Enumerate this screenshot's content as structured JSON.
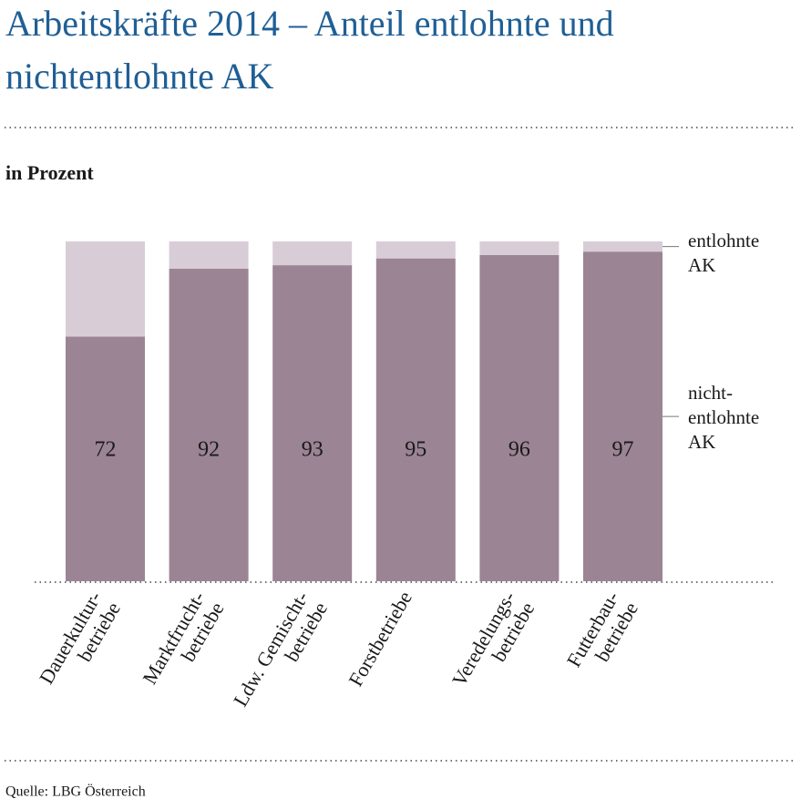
{
  "chart_data": {
    "type": "stacked_bar",
    "title": "Arbeitskräfte 2014 – Anteil entlohnte und\nnichtentlohnte AK",
    "subtitle": "in Prozent",
    "source": "Quelle: LBG Österreich",
    "categories": [
      "Dauerkultur-\nbetriebe",
      "Marktfrucht-\nbetriebe",
      "Ldw. Gemischt-\nbetriebe",
      "Forstbetriebe",
      "Veredelungs-\nbetriebe",
      "Futterbau-\nbetriebe"
    ],
    "ylim": [
      0,
      100
    ],
    "series": [
      {
        "name": "nicht-\nentlohnte\nAK",
        "color": "#9b8494",
        "values": [
          72,
          92,
          93,
          95,
          96,
          97
        ]
      },
      {
        "name": "entlohnte\nAK",
        "color": "#d8cdd6",
        "values": [
          28,
          8,
          7,
          5,
          4,
          3
        ]
      }
    ]
  }
}
